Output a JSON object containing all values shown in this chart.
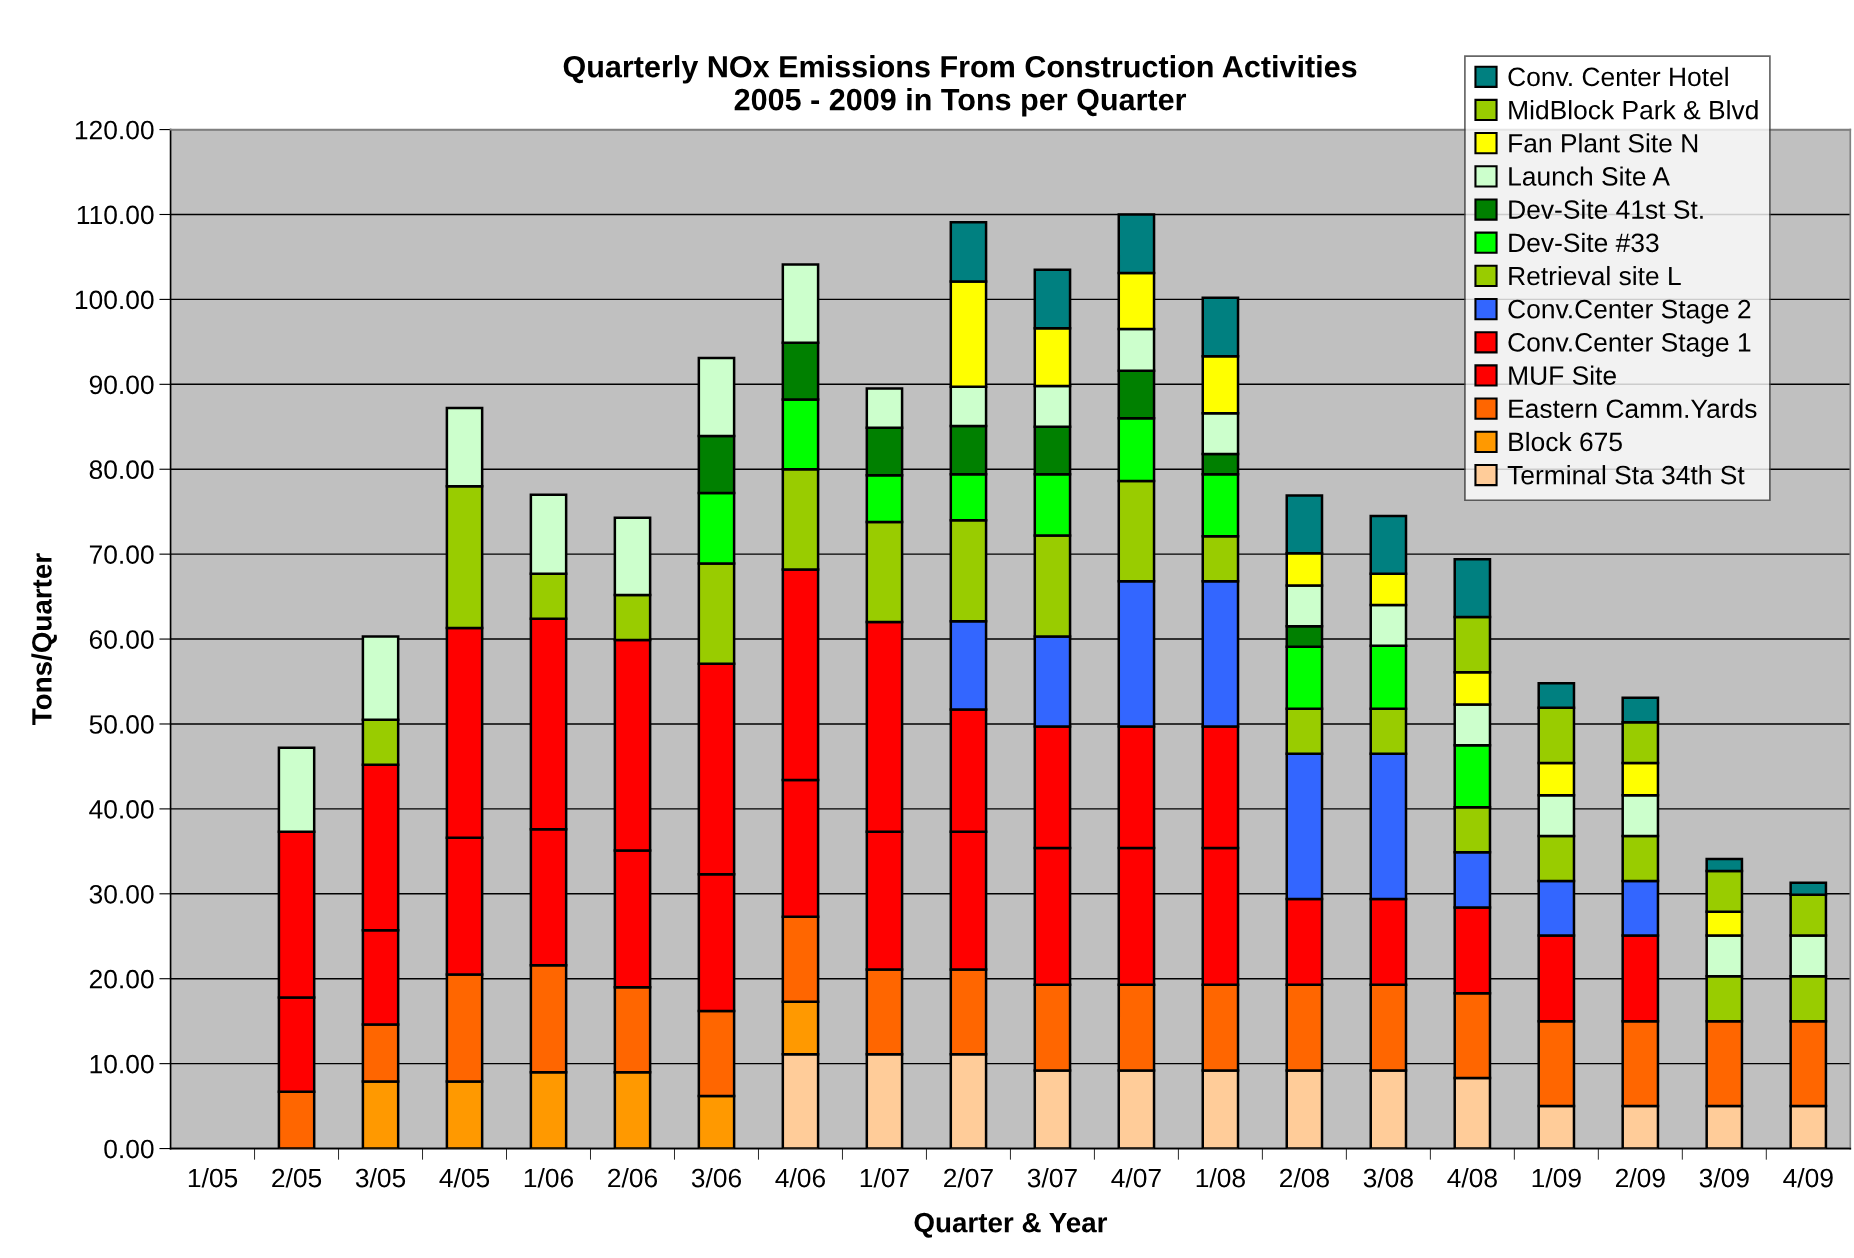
{
  "chart_data": {
    "type": "bar",
    "stacked": true,
    "title": "Quarterly NOx Emissions From Construction Activities\n2005 - 2009 in Tons per Quarter",
    "xlabel": "Quarter & Year",
    "ylabel": "Tons/Quarter",
    "categories": [
      "1/05",
      "2/05",
      "3/05",
      "4/05",
      "1/06",
      "2/06",
      "3/06",
      "4/06",
      "1/07",
      "2/07",
      "3/07",
      "4/07",
      "1/08",
      "2/08",
      "3/08",
      "4/08",
      "1/09",
      "2/09",
      "3/09",
      "4/09"
    ],
    "ylim": [
      0,
      120
    ],
    "yticks": [
      {
        "value": 0,
        "label": "0.00"
      },
      {
        "value": 10,
        "label": "10.00"
      },
      {
        "value": 20,
        "label": "20.00"
      },
      {
        "value": 30,
        "label": "30.00"
      },
      {
        "value": 40,
        "label": "40.00"
      },
      {
        "value": 50,
        "label": "50.00"
      },
      {
        "value": 60,
        "label": "60.00"
      },
      {
        "value": 70,
        "label": "70.00"
      },
      {
        "value": 80,
        "label": "80.00"
      },
      {
        "value": 90,
        "label": "90.00"
      },
      {
        "value": 100,
        "label": "100.00"
      },
      {
        "value": 110,
        "label": "110.00"
      },
      {
        "value": 120,
        "label": "120.00"
      }
    ],
    "grid": "y",
    "legend": "top right",
    "series": [
      {
        "name": "Terminal Sta 34th St",
        "color": "#ffcc99",
        "values": [
          null,
          null,
          null,
          null,
          null,
          null,
          null,
          11.1,
          11.1,
          11.1,
          9.2,
          9.2,
          9.2,
          9.2,
          9.2,
          8.3,
          5.0,
          5.0,
          5.0,
          5.0
        ]
      },
      {
        "name": "Block 675",
        "color": "#ff9900",
        "values": [
          null,
          null,
          7.9,
          7.9,
          9.0,
          9.0,
          6.2,
          6.2,
          null,
          null,
          null,
          null,
          null,
          null,
          null,
          null,
          null,
          null,
          null,
          null
        ]
      },
      {
        "name": "Eastern Camm.Yards",
        "color": "#ff6600",
        "values": [
          null,
          6.7,
          6.7,
          12.6,
          12.6,
          10.0,
          10.0,
          10.0,
          10.0,
          10.0,
          10.1,
          10.1,
          10.1,
          10.1,
          10.1,
          10.0,
          10.0,
          10.0,
          10.0,
          10.0
        ]
      },
      {
        "name": "MUF Site",
        "color": "#ff0000",
        "values": [
          null,
          11.1,
          11.1,
          16.1,
          16.0,
          16.1,
          16.1,
          16.1,
          16.2,
          16.2,
          16.1,
          16.1,
          16.1,
          null,
          null,
          null,
          null,
          null,
          null,
          null
        ]
      },
      {
        "name": "Conv.Center Stage 1",
        "color": "#ff0000",
        "values": [
          null,
          19.5,
          19.5,
          24.7,
          24.8,
          24.8,
          24.8,
          24.8,
          24.7,
          14.4,
          14.3,
          14.3,
          14.3,
          10.1,
          10.1,
          10.1,
          10.1,
          10.1,
          null,
          null
        ]
      },
      {
        "name": "Conv.Center Stage 2",
        "color": "#3366ff",
        "values": [
          null,
          null,
          null,
          null,
          null,
          null,
          null,
          null,
          null,
          10.4,
          10.6,
          17.1,
          17.1,
          17.1,
          17.1,
          6.5,
          6.4,
          6.4,
          null,
          null
        ]
      },
      {
        "name": "Retrieval site L",
        "color": "#99cc00",
        "values": [
          null,
          null,
          5.3,
          16.7,
          5.3,
          5.3,
          11.8,
          11.8,
          11.8,
          11.9,
          11.9,
          11.8,
          5.3,
          5.3,
          5.3,
          5.3,
          5.3,
          5.3,
          5.3,
          5.3
        ]
      },
      {
        "name": "Dev-Site #33",
        "color": "#00ff00",
        "values": [
          null,
          null,
          null,
          null,
          null,
          null,
          8.3,
          8.2,
          5.5,
          5.4,
          7.2,
          7.4,
          7.3,
          7.3,
          7.4,
          7.3,
          null,
          null,
          null,
          null
        ]
      },
      {
        "name": "Dev-Site 41st St.",
        "color": "#008000",
        "values": [
          null,
          null,
          null,
          null,
          null,
          null,
          6.7,
          6.7,
          5.6,
          5.7,
          5.6,
          5.6,
          2.4,
          2.4,
          null,
          null,
          null,
          null,
          null,
          null
        ]
      },
      {
        "name": "Launch Site A",
        "color": "#ccffcc",
        "values": [
          null,
          9.9,
          9.8,
          9.2,
          9.3,
          9.1,
          9.2,
          9.2,
          4.6,
          4.6,
          4.8,
          4.9,
          4.8,
          4.8,
          4.8,
          4.8,
          4.8,
          4.8,
          4.8,
          4.8
        ]
      },
      {
        "name": "Fan Plant Site N",
        "color": "#ffff00",
        "values": [
          null,
          null,
          null,
          null,
          null,
          null,
          null,
          null,
          null,
          12.4,
          6.8,
          6.6,
          6.7,
          3.8,
          3.7,
          3.8,
          3.8,
          3.8,
          2.8,
          null
        ]
      },
      {
        "name": "MidBlock Park & Blvd",
        "color": "#99cc00",
        "values": [
          null,
          null,
          null,
          null,
          null,
          null,
          null,
          null,
          null,
          null,
          null,
          null,
          null,
          null,
          null,
          6.5,
          6.5,
          4.8,
          4.8,
          4.8
        ]
      },
      {
        "name": "Conv. Center Hotel",
        "color": "#008080",
        "values": [
          null,
          null,
          null,
          null,
          null,
          null,
          null,
          null,
          null,
          7.0,
          6.9,
          6.9,
          6.9,
          6.8,
          6.8,
          6.8,
          2.9,
          2.9,
          1.4,
          1.4
        ]
      }
    ]
  }
}
